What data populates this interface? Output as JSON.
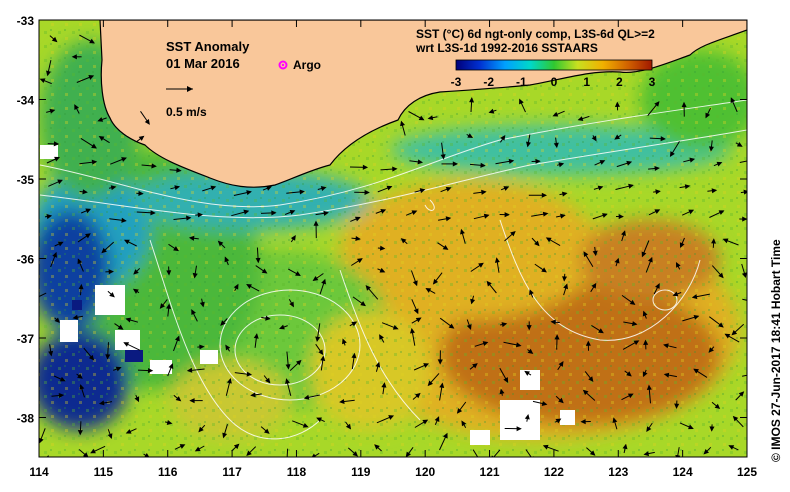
{
  "map": {
    "title": "SST Anomaly",
    "date": "01 Mar 2016",
    "argo_label": "Argo",
    "velocity_label": "0.5 m/s",
    "colorbar_title_1": "SST (°C) 6d ngt-only comp, L3S-6d QL>=2",
    "colorbar_title_2": "wrt L3S-1d 1992-2016 SSTAARS",
    "colorbar_ticks": [
      "-3",
      "-2",
      "-1",
      "0",
      "1",
      "2",
      "3"
    ],
    "x_ticks": [
      "114",
      "115",
      "116",
      "117",
      "118",
      "119",
      "120",
      "121",
      "122",
      "123",
      "124",
      "125"
    ],
    "y_ticks": [
      "-33",
      "-34",
      "-35",
      "-36",
      "-37",
      "-38"
    ],
    "credit": "© IMOS 27-Jun-2017 18:41 Hobart Time",
    "colors": {
      "land": "#f9c79a",
      "coast": "#000000",
      "argo": "#ff00ff",
      "contour": "#ffffff"
    }
  }
}
